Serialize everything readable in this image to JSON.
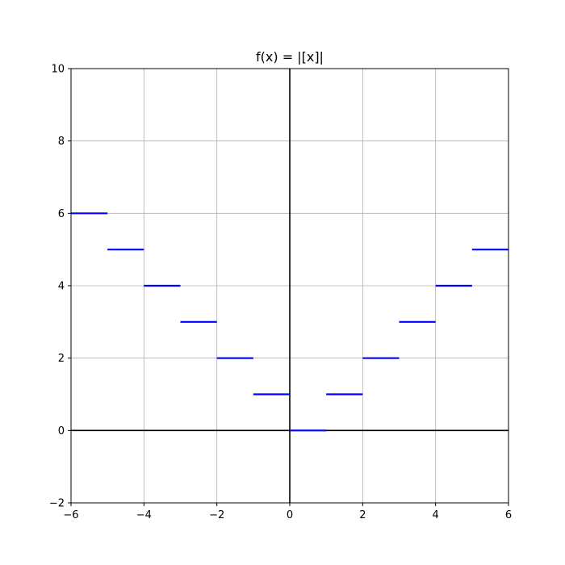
{
  "chart_data": {
    "type": "line",
    "title": "f(x) = |[x]|",
    "xlabel": "",
    "ylabel": "",
    "xlim": [
      -6,
      6
    ],
    "ylim": [
      -2,
      10
    ],
    "x_ticks": [
      -6,
      -4,
      -2,
      0,
      2,
      4,
      6
    ],
    "y_ticks": [
      -2,
      0,
      2,
      4,
      6,
      8,
      10
    ],
    "x_tick_labels": [
      "−6",
      "−4",
      "−2",
      "0",
      "2",
      "4",
      "6"
    ],
    "y_tick_labels": [
      "−2",
      "0",
      "2",
      "4",
      "6",
      "8",
      "10"
    ],
    "grid": true,
    "axis_lines_through_origin": true,
    "series": [
      {
        "color": "#0000ff",
        "segments": [
          {
            "x": [
              -6,
              -5
            ],
            "y": 6
          },
          {
            "x": [
              -5,
              -4
            ],
            "y": 5
          },
          {
            "x": [
              -4,
              -3
            ],
            "y": 4
          },
          {
            "x": [
              -3,
              -2
            ],
            "y": 3
          },
          {
            "x": [
              -2,
              -1
            ],
            "y": 2
          },
          {
            "x": [
              -1,
              0
            ],
            "y": 1
          },
          {
            "x": [
              0,
              1
            ],
            "y": 0
          },
          {
            "x": [
              1,
              2
            ],
            "y": 1
          },
          {
            "x": [
              2,
              3
            ],
            "y": 2
          },
          {
            "x": [
              3,
              4
            ],
            "y": 3
          },
          {
            "x": [
              4,
              5
            ],
            "y": 4
          },
          {
            "x": [
              5,
              6
            ],
            "y": 5
          }
        ]
      }
    ]
  }
}
